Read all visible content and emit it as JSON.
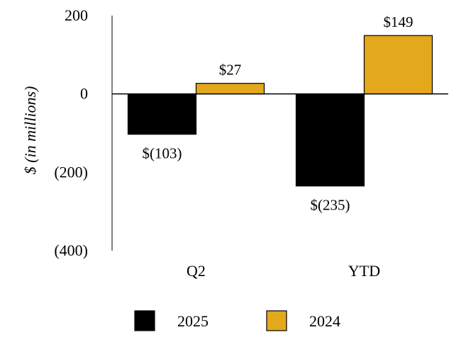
{
  "chart_data": {
    "type": "bar",
    "title": "",
    "xlabel": "",
    "ylabel": "$ (in millions)",
    "categories": [
      "Q2",
      "YTD"
    ],
    "ylim": [
      -400,
      200
    ],
    "y_ticks": [
      200,
      0,
      -200,
      -400
    ],
    "y_tick_labels": [
      "200",
      "0",
      "(200)",
      "(400)"
    ],
    "grid": false,
    "legend_position": "bottom",
    "series": [
      {
        "name": "2025",
        "color": "#000000",
        "values": [
          -103,
          -235
        ],
        "labels": [
          "$(103)",
          "$(235)"
        ]
      },
      {
        "name": "2024",
        "color": "#E3A81C",
        "values": [
          27,
          149
        ],
        "labels": [
          "$27",
          "$149"
        ]
      }
    ]
  }
}
